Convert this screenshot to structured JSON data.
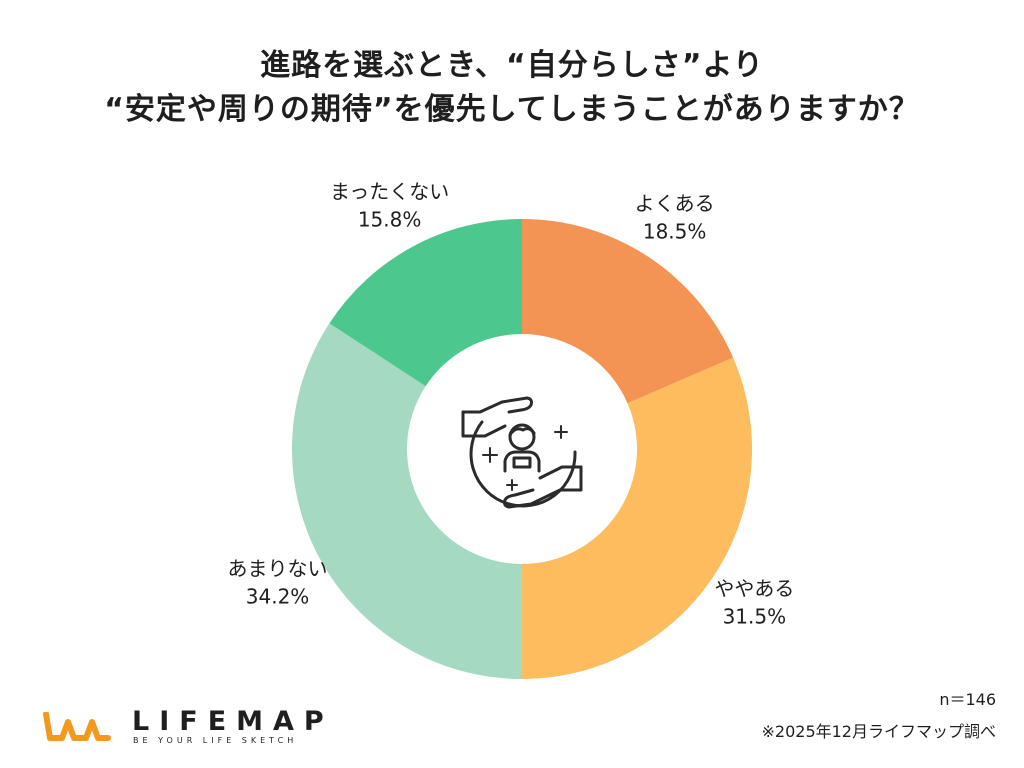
{
  "title": {
    "line1": "進路を選ぶとき、“自分らしさ”より",
    "line2": "“安定や周りの期待”を優先してしまうことがありますか？"
  },
  "chart_data": {
    "type": "pie",
    "variant": "donut",
    "center_icon": "person-protected-by-hands-icon",
    "slices": [
      {
        "label": "よくある",
        "value": 18.5,
        "value_label": "18.5%",
        "color": "#F39455"
      },
      {
        "label": "ややある",
        "value": 31.5,
        "value_label": "31.5%",
        "color": "#FDBC5E"
      },
      {
        "label": "あまりない",
        "value": 34.2,
        "value_label": "34.2%",
        "color": "#A6D9C1"
      },
      {
        "label": "まったくない",
        "value": 15.8,
        "value_label": "15.8%",
        "color": "#4CC78E"
      }
    ]
  },
  "footer": {
    "sample_size": "n＝146",
    "source": "※2025年12月ライフマップ調べ"
  },
  "brand": {
    "name": "LIFEMAP",
    "tagline": "BE YOUR LIFE SKETCH",
    "mark_color": "#F39A1E"
  }
}
